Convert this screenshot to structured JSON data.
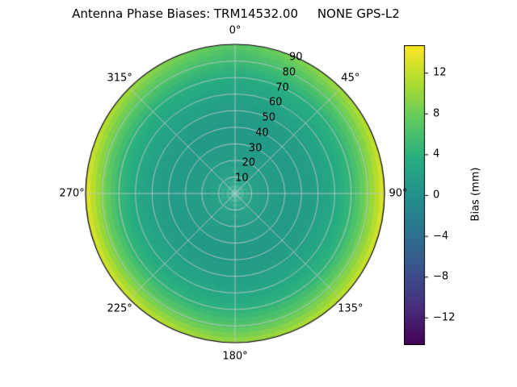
{
  "chart_data": {
    "type": "heatmap",
    "projection": "polar",
    "title": "Antenna Phase Biases: TRM14532.00     NONE GPS-L2",
    "colormap": "viridis",
    "color_range": [
      -14.7,
      14.7
    ],
    "colorbar": {
      "label": "Bias (mm)",
      "ticks": [
        {
          "value": 12,
          "label": "12"
        },
        {
          "value": 8,
          "label": "8"
        },
        {
          "value": 4,
          "label": "4"
        },
        {
          "value": 0,
          "label": "0"
        },
        {
          "value": -4,
          "label": "−4"
        },
        {
          "value": -8,
          "label": "−8"
        },
        {
          "value": -12,
          "label": "−12"
        }
      ]
    },
    "angular_ticks": [
      {
        "deg": 0,
        "label": "0°"
      },
      {
        "deg": 45,
        "label": "45°"
      },
      {
        "deg": 90,
        "label": "90°"
      },
      {
        "deg": 135,
        "label": "135°"
      },
      {
        "deg": 180,
        "label": "180°"
      },
      {
        "deg": 225,
        "label": "225°"
      },
      {
        "deg": 270,
        "label": "270°"
      },
      {
        "deg": 315,
        "label": "315°"
      }
    ],
    "radial_ticks": [
      {
        "zenith": 10,
        "label": "10"
      },
      {
        "zenith": 20,
        "label": "20"
      },
      {
        "zenith": 30,
        "label": "30"
      },
      {
        "zenith": 40,
        "label": "40"
      },
      {
        "zenith": 50,
        "label": "50"
      },
      {
        "zenith": 60,
        "label": "60"
      },
      {
        "zenith": 70,
        "label": "70"
      },
      {
        "zenith": 80,
        "label": "80"
      },
      {
        "zenith": 90,
        "label": "90"
      }
    ],
    "azimuth_deg": [
      0,
      45,
      90,
      135,
      180,
      225,
      270,
      315
    ],
    "zenith_deg": [
      0,
      10,
      20,
      30,
      40,
      50,
      60,
      70,
      80,
      90
    ],
    "bias_mm": [
      [
        2.5,
        2.0,
        1.5,
        1.2,
        1.0,
        1.5,
        2.2,
        3.5,
        5.0,
        7.0
      ],
      [
        2.5,
        2.0,
        1.5,
        1.2,
        1.2,
        1.8,
        2.6,
        4.0,
        7.0,
        10.5
      ],
      [
        2.5,
        2.0,
        1.5,
        1.2,
        1.3,
        2.0,
        3.0,
        5.0,
        9.0,
        14.0
      ],
      [
        2.5,
        2.0,
        1.5,
        1.2,
        1.2,
        1.9,
        2.8,
        4.5,
        8.0,
        12.0
      ],
      [
        2.5,
        2.0,
        1.5,
        1.2,
        1.1,
        1.7,
        2.5,
        4.0,
        6.5,
        10.0
      ],
      [
        2.5,
        2.0,
        1.5,
        1.2,
        1.2,
        1.9,
        2.8,
        4.5,
        8.0,
        12.5
      ],
      [
        2.5,
        2.0,
        1.5,
        1.2,
        1.3,
        2.0,
        3.0,
        5.0,
        9.0,
        14.0
      ],
      [
        2.5,
        2.0,
        1.5,
        1.2,
        1.2,
        1.8,
        2.6,
        4.0,
        7.0,
        10.5
      ]
    ],
    "radial_label_angle_deg": 24
  }
}
